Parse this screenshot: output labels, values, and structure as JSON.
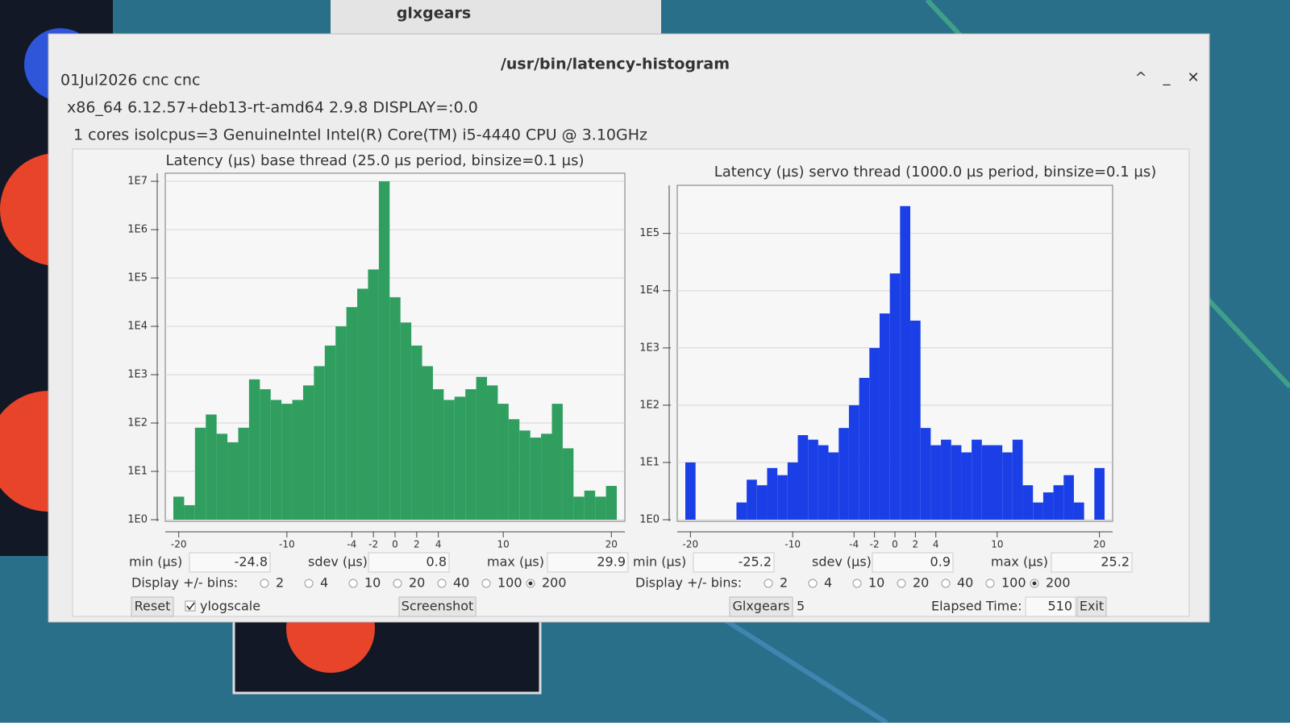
{
  "glxgears_window": {
    "title": "glxgears"
  },
  "window": {
    "title": "/usr/bin/latency-histogram",
    "info": [
      "01Jul2026 cnc cnc",
      "x86_64  6.12.57+deb13-rt-amd64  2.9.8  DISPLAY=:0.0",
      "1 cores  isolcpus=3  GenuineIntel  Intel(R) Core(TM) i5-4440 CPU @ 3.10GHz"
    ]
  },
  "chart_data": [
    {
      "type": "bar",
      "title": "Latency (µs) base thread (25.0 µs period, binsize=0.1 µs)",
      "color": "#2f9e5e",
      "log_y": true,
      "x": [
        -20,
        -19,
        -18,
        -17,
        -16,
        -15,
        -14,
        -13,
        -12,
        -11,
        -10,
        -9,
        -8,
        -7,
        -6,
        -5,
        -4,
        -3,
        -2,
        -1,
        0,
        1,
        2,
        3,
        4,
        5,
        6,
        7,
        8,
        9,
        10,
        11,
        12,
        13,
        14,
        15,
        16,
        17,
        18,
        19,
        20
      ],
      "values": [
        3,
        2,
        80,
        150,
        60,
        40,
        80,
        800,
        500,
        300,
        250,
        300,
        600,
        1500,
        4000,
        10000,
        25000,
        60000,
        150000,
        10000000,
        40000,
        12000,
        4000,
        1500,
        500,
        300,
        350,
        500,
        900,
        600,
        250,
        120,
        70,
        50,
        60,
        250,
        30,
        3,
        4,
        3,
        5
      ],
      "xlim": [
        -20.5,
        20.5
      ],
      "xticks": [
        -20,
        -10,
        -4,
        -2,
        0,
        2,
        4,
        10,
        20
      ],
      "ylim": [
        1,
        10000000
      ],
      "yticks": [
        {
          "value": 1,
          "label": "1E0"
        },
        {
          "value": 10,
          "label": "1E1"
        },
        {
          "value": 100,
          "label": "1E2"
        },
        {
          "value": 1000,
          "label": "1E3"
        },
        {
          "value": 10000,
          "label": "1E4"
        },
        {
          "value": 100000,
          "label": "1E5"
        },
        {
          "value": 1000000,
          "label": "1E6"
        },
        {
          "value": 10000000,
          "label": "1E7"
        }
      ],
      "grid": true
    },
    {
      "type": "bar",
      "title": "Latency (µs) servo thread (1000.0 µs period, binsize=0.1 µs)",
      "color": "#1b3fe6",
      "log_y": true,
      "x": [
        -20,
        -19,
        -18,
        -17,
        -16,
        -15,
        -14,
        -13,
        -12,
        -11,
        -10,
        -9,
        -8,
        -7,
        -6,
        -5,
        -4,
        -3,
        -2,
        -1,
        0,
        1,
        2,
        3,
        4,
        5,
        6,
        7,
        8,
        9,
        10,
        11,
        12,
        13,
        14,
        15,
        16,
        17,
        18,
        19,
        20
      ],
      "values": [
        10,
        1,
        1,
        1,
        1,
        2,
        5,
        4,
        8,
        6,
        10,
        30,
        25,
        20,
        15,
        40,
        100,
        300,
        1000,
        4000,
        20000,
        300000,
        3000,
        40,
        20,
        25,
        20,
        15,
        25,
        20,
        20,
        15,
        25,
        4,
        2,
        3,
        4,
        6,
        2,
        1,
        8
      ],
      "xlim": [
        -20.5,
        20.5
      ],
      "xticks": [
        -20,
        -10,
        -4,
        -2,
        0,
        2,
        4,
        10,
        20
      ],
      "ylim": [
        1,
        500000
      ],
      "yticks": [
        {
          "value": 1,
          "label": "1E0"
        },
        {
          "value": 10,
          "label": "1E1"
        },
        {
          "value": 100,
          "label": "1E2"
        },
        {
          "value": 1000,
          "label": "1E3"
        },
        {
          "value": 10000,
          "label": "1E4"
        },
        {
          "value": 100000,
          "label": "1E5"
        }
      ],
      "grid": true
    }
  ],
  "panels": [
    {
      "stats": [
        {
          "label": "min (µs)",
          "value": "-24.8"
        },
        {
          "label": "sdev (µs)",
          "value": "0.8"
        },
        {
          "label": "max (µs)",
          "value": "29.9"
        }
      ],
      "bins": {
        "label": "Display +/- bins:",
        "options": [
          "2",
          "4",
          "10",
          "20",
          "40",
          "100",
          "200"
        ],
        "selected": "200"
      }
    },
    {
      "stats": [
        {
          "label": "min (µs)",
          "value": "-25.2"
        },
        {
          "label": "sdev (µs)",
          "value": "0.9"
        },
        {
          "label": "max (µs)",
          "value": "25.2"
        }
      ],
      "bins": {
        "label": "Display +/- bins:",
        "options": [
          "2",
          "4",
          "10",
          "20",
          "40",
          "100",
          "200"
        ],
        "selected": "200"
      }
    }
  ],
  "footer": {
    "reset": "Reset",
    "ylogscale": {
      "label": "ylogscale",
      "checked": true
    },
    "screenshot": "Screenshot",
    "glxgears": "Glxgears",
    "glxgears_count": "5",
    "elapsed_label": "Elapsed Time:",
    "elapsed_value": "510",
    "exit": "Exit"
  }
}
